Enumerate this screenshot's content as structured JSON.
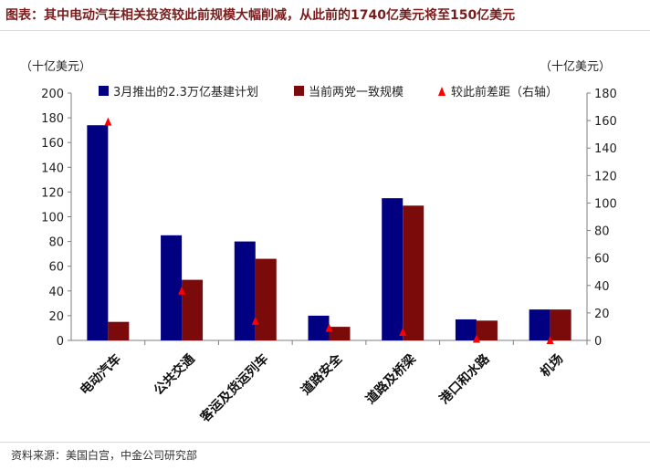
{
  "header": {
    "title": "图表：其中电动汽车相关投资较此前规模大幅削减，从此前的1740亿美元将至150亿美元"
  },
  "footer": {
    "source": "资料来源：美国白宫，中金公司研究部"
  },
  "colors": {
    "series_march": "#000080",
    "series_current": "#7b0b0b",
    "series_gap": "#ff0000",
    "axis": "#7f7f7f"
  },
  "chart_data": {
    "type": "bar",
    "categories": [
      "电动汽车",
      "公共交通",
      "客运及货运列车",
      "道路安全",
      "道路及桥梁",
      "港口和水路",
      "机场"
    ],
    "series": [
      {
        "name": "3月推出的2.3万亿基建计划",
        "type": "bar",
        "axis": "left",
        "values": [
          174,
          85,
          80,
          20,
          115,
          17,
          25
        ]
      },
      {
        "name": "当前两党一致规模",
        "type": "bar",
        "axis": "left",
        "values": [
          15,
          49,
          66,
          11,
          109,
          16,
          25
        ]
      },
      {
        "name": "较此前差距（右轴）",
        "type": "scatter",
        "axis": "right",
        "values": [
          159,
          36,
          14,
          9,
          6,
          1,
          0
        ]
      }
    ],
    "y_left": {
      "unit": "（十亿美元）",
      "min": 0,
      "max": 200,
      "ticks": [
        0,
        20,
        40,
        60,
        80,
        100,
        120,
        140,
        160,
        180,
        200
      ]
    },
    "y_right": {
      "unit": "（十亿美元）",
      "min": 0,
      "max": 180,
      "ticks": [
        0,
        20,
        40,
        60,
        80,
        100,
        120,
        140,
        160,
        180
      ]
    },
    "legend": "top",
    "grid": false
  }
}
